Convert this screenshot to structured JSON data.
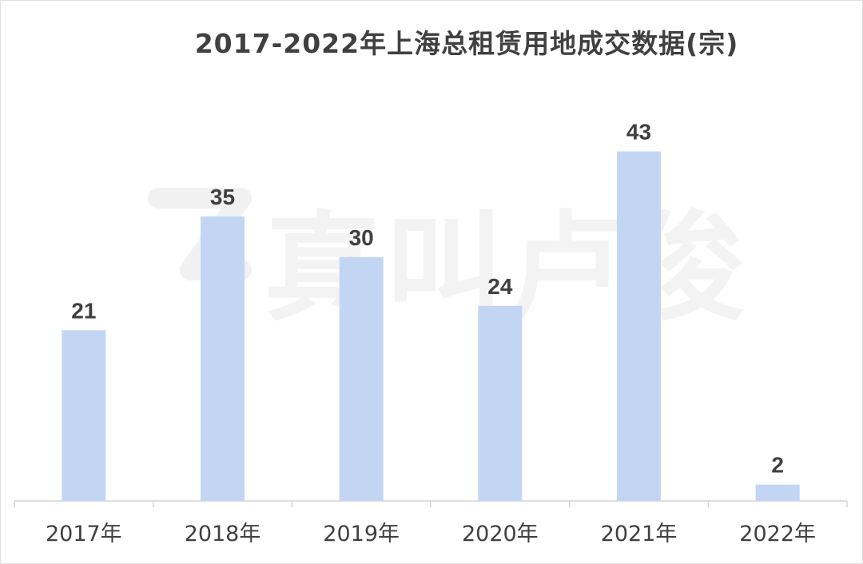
{
  "chart_data": {
    "type": "bar",
    "title": "2017-2022年上海总租赁用地成交数据(宗)",
    "categories": [
      "2017年",
      "2018年",
      "2019年",
      "2020年",
      "2021年",
      "2022年"
    ],
    "values": [
      21,
      35,
      30,
      24,
      43,
      2
    ],
    "xlabel": "",
    "ylabel": "",
    "ylim": [
      0,
      52
    ],
    "grid": false,
    "bar_color": "#c2d6f4"
  },
  "watermark": {
    "text": "真叫卢俊"
  },
  "colors": {
    "axis": "#d4d4d4",
    "label": "#404040",
    "tick": "#404040"
  }
}
